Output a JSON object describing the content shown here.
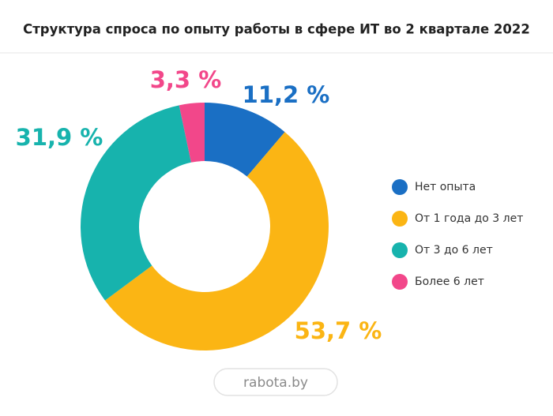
{
  "chart_data": {
    "type": "pie",
    "title": "Структура спроса по опыту работы в сфере ИТ во 2 квартале 2022",
    "categories": [
      "Нет опыта",
      "От 1 года до 3 лет",
      "От 3 до 6 лет",
      "Более 6 лет"
    ],
    "values": [
      11.2,
      53.7,
      31.9,
      3.3
    ],
    "value_labels": [
      "11,2 %",
      "53,7 %",
      "31,9 %",
      "3,3 %"
    ],
    "colors": [
      "#1a6fc4",
      "#fbb514",
      "#17b3ad",
      "#f2478a"
    ],
    "legend": "right",
    "source": "rabota.by"
  }
}
